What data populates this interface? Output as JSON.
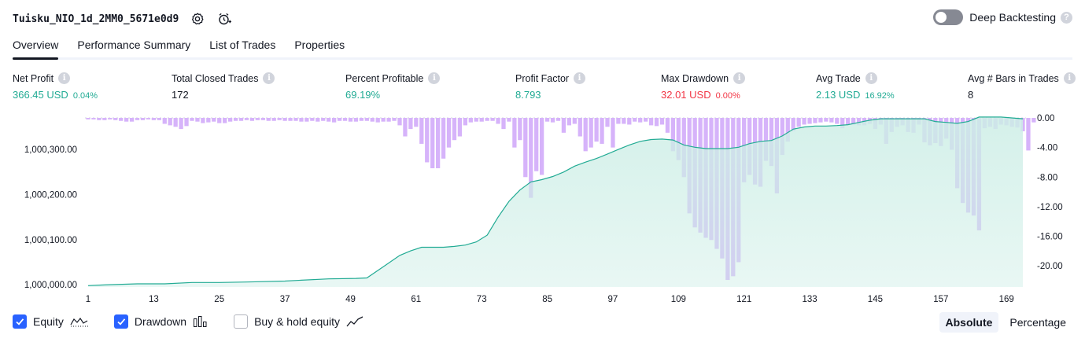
{
  "header": {
    "title": "Tuisku_NIO_1d_2MM0_5671e0d9",
    "settings_icon": "gear-icon",
    "add_alert_icon": "alarm-clock-plus-icon"
  },
  "deep_backtesting": {
    "label": "Deep Backtesting",
    "enabled": false,
    "help": "?"
  },
  "tabs": [
    {
      "label": "Overview",
      "active": true
    },
    {
      "label": "Performance Summary",
      "active": false
    },
    {
      "label": "List of Trades",
      "active": false
    },
    {
      "label": "Properties",
      "active": false
    }
  ],
  "metrics": [
    {
      "label": "Net Profit",
      "value": "366.45 USD",
      "pct": "0.04%",
      "color": "green"
    },
    {
      "label": "Total Closed Trades",
      "value": "172",
      "pct": "",
      "color": "dark"
    },
    {
      "label": "Percent Profitable",
      "value": "69.19%",
      "pct": "",
      "color": "green"
    },
    {
      "label": "Profit Factor",
      "value": "8.793",
      "pct": "",
      "color": "green"
    },
    {
      "label": "Max Drawdown",
      "value": "32.01 USD",
      "pct": "0.00%",
      "color": "red"
    },
    {
      "label": "Avg Trade",
      "value": "2.13 USD",
      "pct": "16.92%",
      "color": "green"
    },
    {
      "label": "Avg # Bars in Trades",
      "value": "8",
      "pct": "",
      "color": "dark"
    }
  ],
  "info_glyph": "i",
  "legend": {
    "equity": {
      "label": "Equity",
      "checked": true
    },
    "drawdown": {
      "label": "Drawdown",
      "checked": true
    },
    "buyhold": {
      "label": "Buy & hold equity",
      "checked": false
    }
  },
  "mode": {
    "absolute": "Absolute",
    "percentage": "Percentage",
    "active": "Absolute"
  },
  "colors": {
    "equity_line": "#22ab94",
    "equity_fill": "#cdeee6",
    "drawdown_bar": "#d6b3fa",
    "negative": "#f23645",
    "positive": "#22ab94",
    "accent": "#2962ff"
  },
  "chart_data": {
    "type": "area",
    "x_ticks": [
      "1",
      "13",
      "25",
      "37",
      "49",
      "61",
      "73",
      "85",
      "97",
      "109",
      "121",
      "133",
      "145",
      "157",
      "169"
    ],
    "xlim": [
      1,
      172
    ],
    "left_axis": {
      "ticks": [
        "1,000,000.00",
        "1,000,100.00",
        "1,000,200.00",
        "1,000,300.00"
      ],
      "ylim": [
        999995,
        1000370
      ]
    },
    "right_axis": {
      "ticks": [
        "0.00",
        "-4.00",
        "-8.00",
        "-12.00",
        "-16.00",
        "-20.00"
      ],
      "ylim": [
        -22,
        0
      ]
    },
    "series": [
      {
        "name": "Equity",
        "axis": "left",
        "x": [
          1,
          5,
          10,
          15,
          20,
          25,
          30,
          37,
          40,
          45,
          50,
          52,
          55,
          58,
          60,
          62,
          64,
          66,
          68,
          70,
          72,
          74,
          76,
          78,
          80,
          82,
          84,
          86,
          88,
          90,
          92,
          94,
          96,
          98,
          100,
          102,
          104,
          106,
          108,
          110,
          112,
          114,
          116,
          118,
          120,
          122,
          124,
          126,
          128,
          130,
          132,
          134,
          136,
          138,
          140,
          142,
          144,
          146,
          148,
          150,
          152,
          154,
          156,
          158,
          160,
          162,
          164,
          166,
          168,
          170,
          172
        ],
        "values": [
          999998,
          1000000,
          1000002,
          1000002,
          1000005,
          1000005,
          1000006,
          1000008,
          1000010,
          1000013,
          1000014,
          1000015,
          1000040,
          1000065,
          1000075,
          1000083,
          1000083,
          1000083,
          1000085,
          1000088,
          1000095,
          1000110,
          1000150,
          1000185,
          1000210,
          1000228,
          1000233,
          1000240,
          1000250,
          1000263,
          1000272,
          1000280,
          1000290,
          1000300,
          1000310,
          1000318,
          1000322,
          1000323,
          1000321,
          1000310,
          1000305,
          1000302,
          1000302,
          1000302,
          1000305,
          1000313,
          1000318,
          1000320,
          1000330,
          1000345,
          1000350,
          1000352,
          1000352,
          1000353,
          1000355,
          1000360,
          1000365,
          1000368,
          1000368,
          1000368,
          1000368,
          1000368,
          1000362,
          1000360,
          1000358,
          1000362,
          1000372,
          1000372,
          1000372,
          1000370,
          1000368
        ]
      },
      {
        "name": "Drawdown",
        "axis": "right",
        "x_start": 1,
        "values": [
          -0.2,
          -0.2,
          -0.3,
          -0.3,
          -0.2,
          -0.3,
          -0.4,
          -0.5,
          -0.5,
          -0.3,
          -0.3,
          -0.2,
          -0.3,
          -0.3,
          -0.8,
          -1.0,
          -1.2,
          -1.5,
          -1.1,
          -0.4,
          -0.5,
          -0.7,
          -0.6,
          -0.5,
          -0.7,
          -0.7,
          -0.5,
          -0.4,
          -0.4,
          -0.3,
          -0.4,
          -0.3,
          -0.3,
          -0.4,
          -0.4,
          -0.3,
          -0.4,
          -0.4,
          -0.4,
          -0.5,
          -0.5,
          -0.4,
          -0.5,
          -0.4,
          -0.5,
          -0.6,
          -0.4,
          -0.4,
          -0.5,
          -0.5,
          -0.4,
          -0.4,
          -0.5,
          -0.6,
          -0.5,
          -0.5,
          -0.4,
          -1.0,
          -2.5,
          -1.5,
          -1.2,
          -3.5,
          -6.0,
          -6.8,
          -6.8,
          -5.5,
          -4.0,
          -3.0,
          -2.5,
          -1.0,
          -0.6,
          -0.5,
          -0.5,
          -0.4,
          -0.4,
          -0.8,
          -1.5,
          -0.5,
          -4.0,
          -3.0,
          -8.0,
          -10.8,
          -7.2,
          -7.7,
          -0.5,
          -0.6,
          -0.4,
          -2.0,
          -1.0,
          -0.8,
          -2.5,
          -4.5,
          -4.0,
          -3.2,
          -3.5,
          -1.2,
          -4.0,
          -0.8,
          -0.8,
          -0.9,
          -0.5,
          -0.6,
          -0.5,
          -1.0,
          -1.1,
          -0.9,
          -2.0,
          -4.5,
          -5.7,
          -8.0,
          -12.9,
          -14.8,
          -15.5,
          -16.2,
          -16.5,
          -17.7,
          -19.0,
          -21.9,
          -21.4,
          -19.5,
          -8.7,
          -7.7,
          -9.0,
          -9.3,
          -5.8,
          -6.5,
          -10.2,
          -5.0,
          -3.2,
          -1.8,
          -1.2,
          -0.9,
          -0.8,
          -0.7,
          -0.6,
          -0.5,
          -0.6,
          -0.8,
          -1.4,
          -0.9,
          -0.9,
          -1.0,
          -1.0,
          -0.8,
          -1.5,
          -0.9,
          -3.5,
          -1.9,
          -1.2,
          -1.0,
          -1.9,
          -2.0,
          -0.9,
          -3.3,
          -3.7,
          -3.4,
          -3.8,
          -2.8,
          -4.3,
          -9.5,
          -11.5,
          -12.8,
          -13.2,
          -15.2,
          -1.4,
          -1.2,
          -1.5,
          -0.9,
          -1.0,
          -1.2,
          -1.3,
          -1.8,
          -4.4,
          -0.6
        ]
      }
    ]
  }
}
